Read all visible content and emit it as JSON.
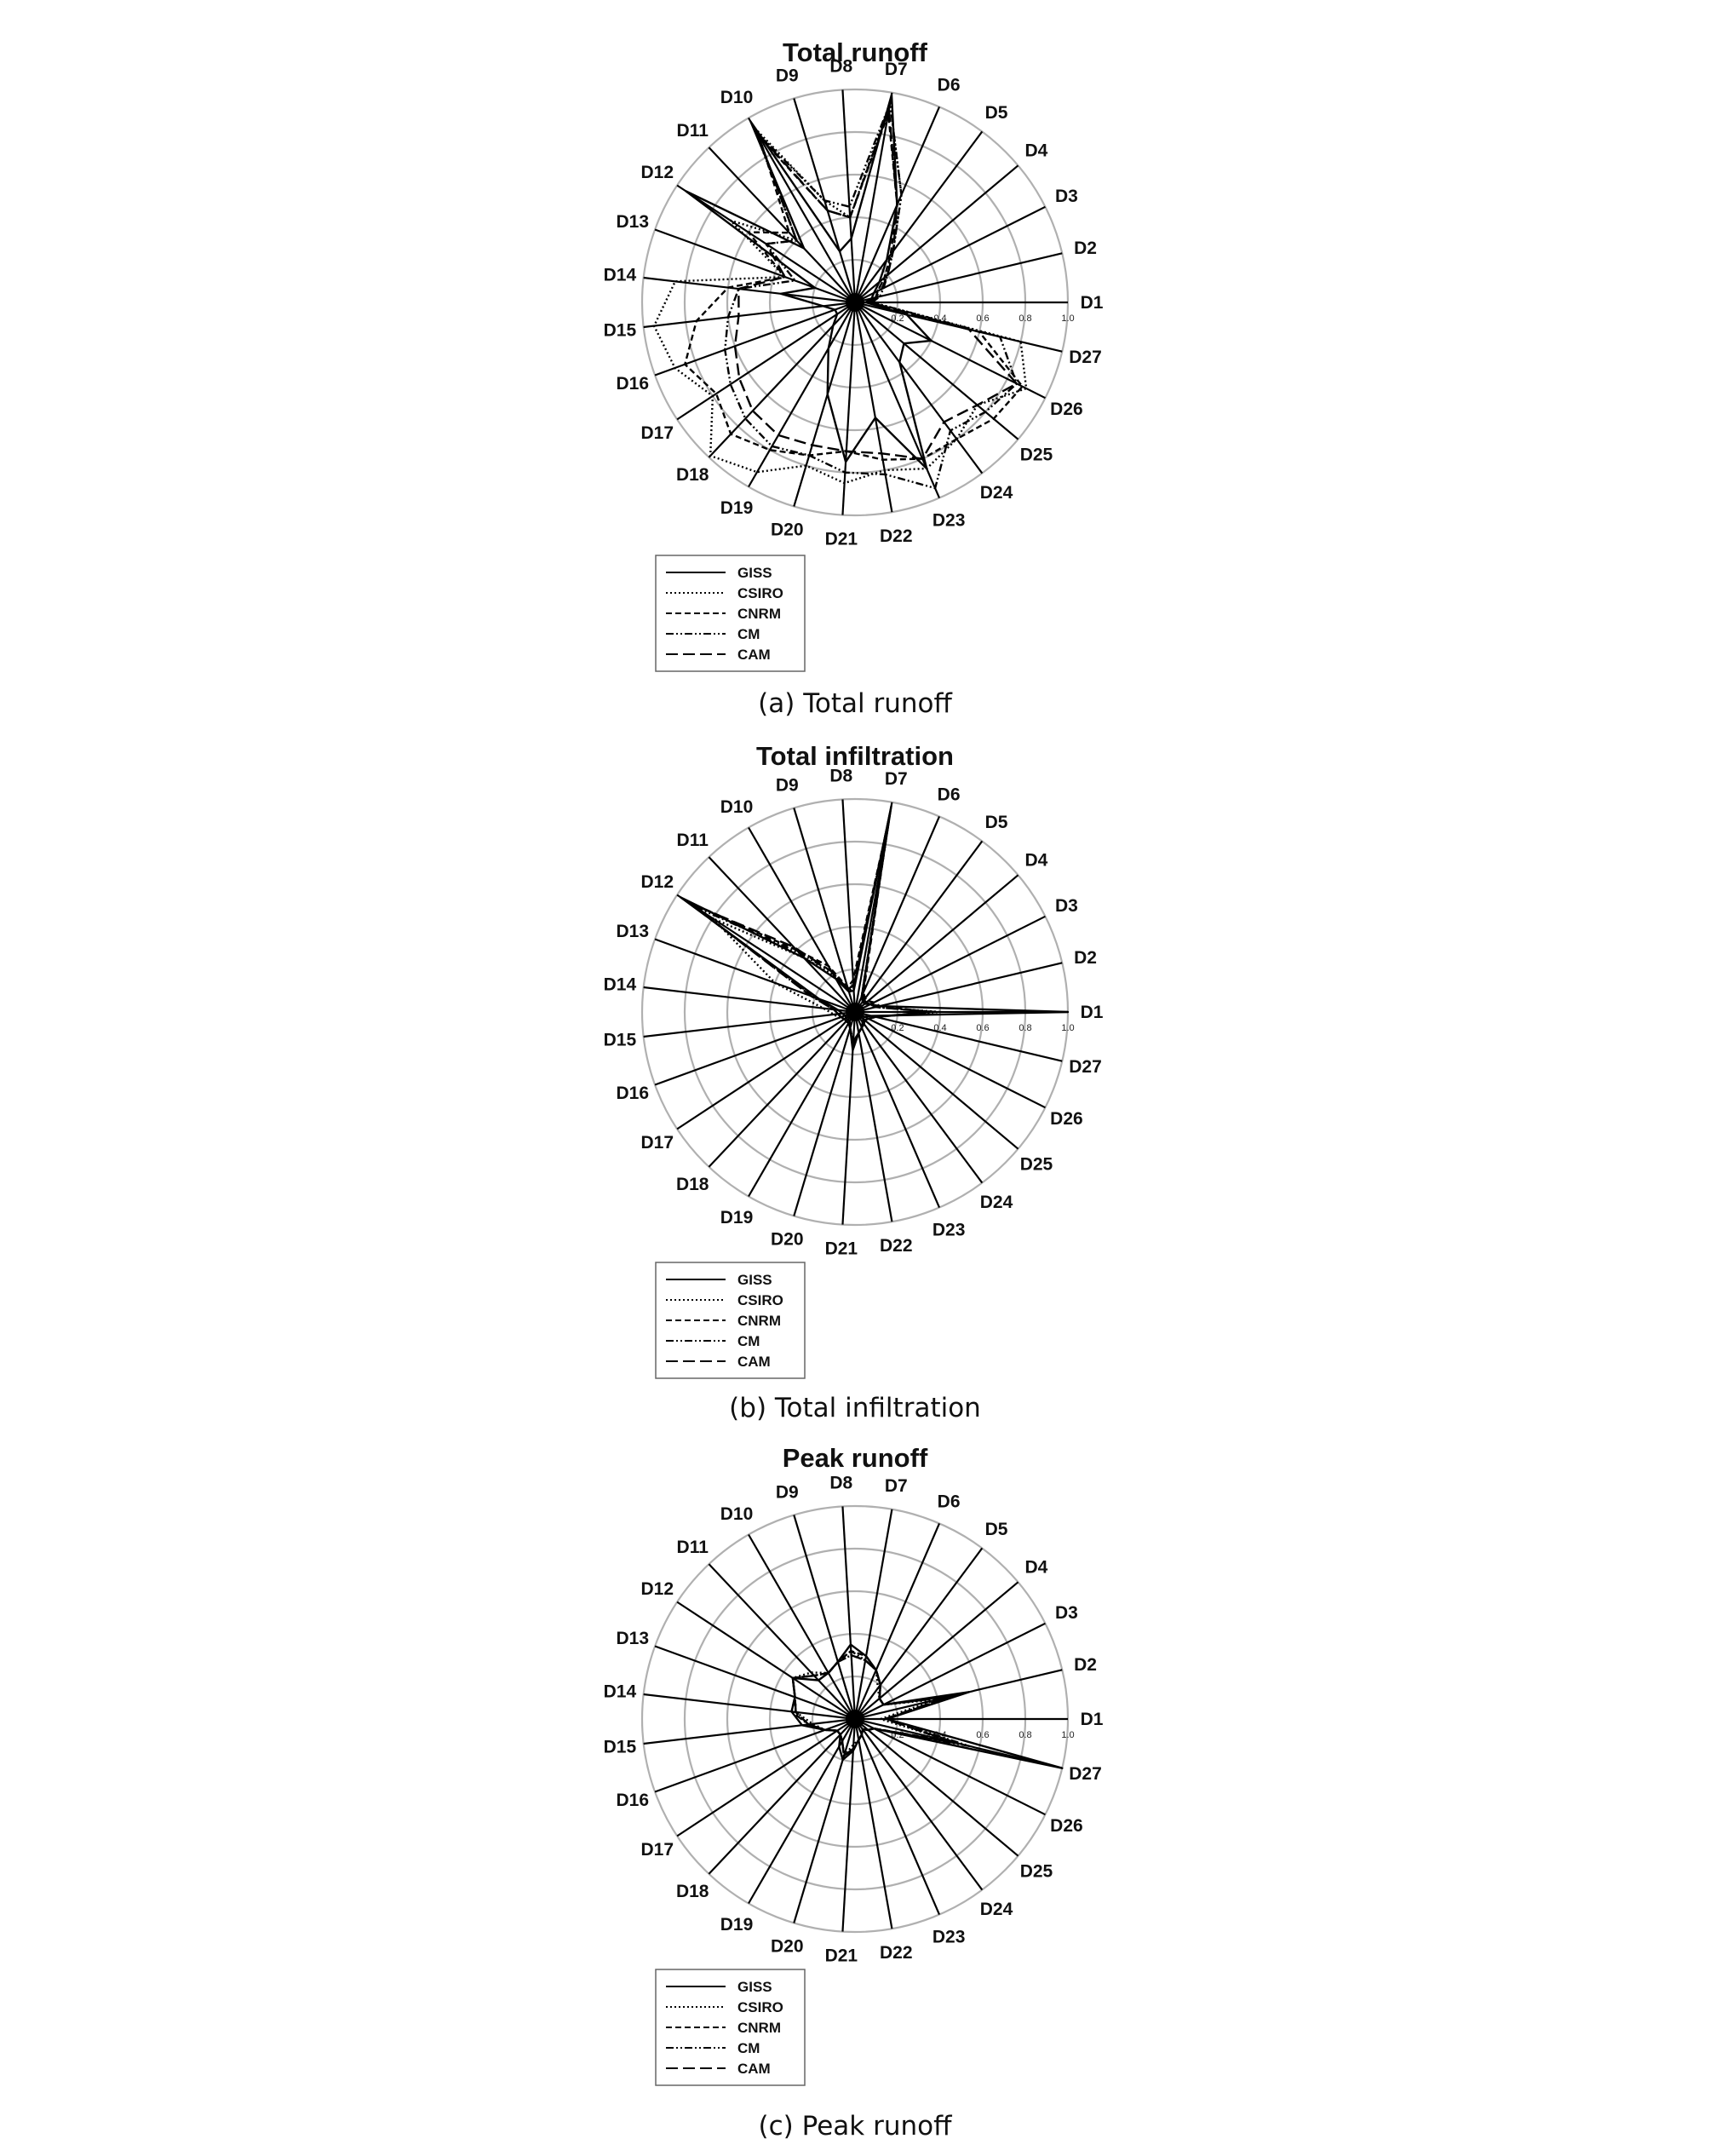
{
  "figure": {
    "spokes": [
      "D1",
      "D2",
      "D3",
      "D4",
      "D5",
      "D6",
      "D7",
      "D8",
      "D9",
      "D10",
      "D11",
      "D12",
      "D13",
      "D14",
      "D15",
      "D16",
      "D17",
      "D18",
      "D19",
      "D20",
      "D21",
      "D22",
      "D23",
      "D24",
      "D25",
      "D26",
      "D27"
    ],
    "radial_ticks": [
      "0.2",
      "0.4",
      "0.6",
      "0.8",
      "1.0"
    ],
    "legend": [
      "GISS",
      "CSIRO",
      "CNRM",
      "CM",
      "CAM"
    ],
    "series_styles": {
      "GISS": {
        "color": "#000000",
        "dash": "solid"
      },
      "CSIRO": {
        "color": "#000000",
        "dash": "dotted"
      },
      "CNRM": {
        "color": "#000000",
        "dash": "short-dash"
      },
      "CM": {
        "color": "#000000",
        "dash": "dash-dot-dot"
      },
      "CAM": {
        "color": "#000000",
        "dash": "long-dash"
      }
    },
    "grid_color": "#b0b0b0"
  },
  "chart_data": [
    {
      "type": "radar",
      "title": "Total runoff",
      "caption": "(a) Total runoff",
      "rlim": [
        0,
        1.0
      ],
      "grid": true,
      "legend_position": "bottom-left",
      "categories": [
        "D1",
        "D2",
        "D3",
        "D4",
        "D5",
        "D6",
        "D7",
        "D8",
        "D9",
        "D10",
        "D11",
        "D12",
        "D13",
        "D14",
        "D15",
        "D16",
        "D17",
        "D18",
        "D19",
        "D20",
        "D21",
        "D22",
        "D23",
        "D24",
        "D25",
        "D26",
        "D27"
      ],
      "series": [
        {
          "name": "GISS",
          "values": [
            0.05,
            0.08,
            0.1,
            0.15,
            0.25,
            0.5,
            0.99,
            0.3,
            0.25,
            0.98,
            0.35,
            0.95,
            0.2,
            0.35,
            0.15,
            0.1,
            0.1,
            0.15,
            0.25,
            0.45,
            0.75,
            0.55,
            0.85,
            0.35,
            0.3,
            0.4,
            0.25
          ]
        },
        {
          "name": "CSIRO",
          "values": [
            0.08,
            0.1,
            0.12,
            0.18,
            0.3,
            0.55,
            0.95,
            0.4,
            0.5,
            0.95,
            0.4,
            0.7,
            0.35,
            0.85,
            0.95,
            0.9,
            0.8,
            0.99,
            0.92,
            0.8,
            0.85,
            0.8,
            0.85,
            0.8,
            0.75,
            0.9,
            0.8
          ]
        },
        {
          "name": "CNRM",
          "values": [
            0.06,
            0.1,
            0.12,
            0.18,
            0.28,
            0.5,
            0.9,
            0.4,
            0.45,
            0.9,
            0.45,
            0.6,
            0.35,
            0.6,
            0.75,
            0.85,
            0.78,
            0.85,
            0.8,
            0.75,
            0.7,
            0.75,
            0.8,
            0.8,
            0.85,
            0.88,
            0.6
          ]
        },
        {
          "name": "CM",
          "values": [
            0.08,
            0.12,
            0.15,
            0.2,
            0.3,
            0.55,
            0.95,
            0.45,
            0.5,
            0.92,
            0.4,
            0.5,
            0.3,
            0.55,
            0.6,
            0.65,
            0.7,
            0.75,
            0.78,
            0.75,
            0.8,
            0.82,
            0.95,
            0.75,
            0.8,
            0.85,
            0.7
          ]
        },
        {
          "name": "CAM",
          "values": [
            0.07,
            0.1,
            0.14,
            0.2,
            0.3,
            0.5,
            0.92,
            0.4,
            0.45,
            0.92,
            0.4,
            0.5,
            0.35,
            0.55,
            0.55,
            0.6,
            0.65,
            0.7,
            0.72,
            0.7,
            0.7,
            0.72,
            0.8,
            0.7,
            0.75,
            0.85,
            0.55
          ]
        }
      ]
    },
    {
      "type": "radar",
      "title": "Total infiltration",
      "caption": "(b) Total infiltration",
      "rlim": [
        0,
        1.0
      ],
      "grid": true,
      "legend_position": "bottom-left",
      "categories": [
        "D1",
        "D2",
        "D3",
        "D4",
        "D5",
        "D6",
        "D7",
        "D8",
        "D9",
        "D10",
        "D11",
        "D12",
        "D13",
        "D14",
        "D15",
        "D16",
        "D17",
        "D18",
        "D19",
        "D20",
        "D21",
        "D22",
        "D23",
        "D24",
        "D25",
        "D26",
        "D27"
      ],
      "series": [
        {
          "name": "GISS",
          "values": [
            1.0,
            0.12,
            0.08,
            0.06,
            0.06,
            0.08,
            0.98,
            0.1,
            0.1,
            0.18,
            0.35,
            0.98,
            0.18,
            0.08,
            0.06,
            0.05,
            0.05,
            0.05,
            0.05,
            0.08,
            0.18,
            0.1,
            0.08,
            0.06,
            0.05,
            0.05,
            0.08
          ]
        },
        {
          "name": "CSIRO",
          "values": [
            0.4,
            0.1,
            0.08,
            0.07,
            0.07,
            0.08,
            0.9,
            0.12,
            0.12,
            0.2,
            0.35,
            0.8,
            0.4,
            0.15,
            0.1,
            0.08,
            0.06,
            0.06,
            0.06,
            0.08,
            0.15,
            0.1,
            0.08,
            0.06,
            0.06,
            0.07,
            0.1
          ]
        },
        {
          "name": "CNRM",
          "values": [
            0.35,
            0.12,
            0.1,
            0.08,
            0.08,
            0.1,
            0.92,
            0.15,
            0.12,
            0.25,
            0.4,
            0.95,
            0.2,
            0.1,
            0.08,
            0.07,
            0.06,
            0.06,
            0.06,
            0.08,
            0.15,
            0.1,
            0.08,
            0.07,
            0.06,
            0.07,
            0.1
          ]
        },
        {
          "name": "CM",
          "values": [
            0.38,
            0.1,
            0.08,
            0.07,
            0.07,
            0.08,
            0.95,
            0.12,
            0.1,
            0.22,
            0.38,
            0.9,
            0.22,
            0.1,
            0.08,
            0.07,
            0.06,
            0.06,
            0.06,
            0.08,
            0.14,
            0.1,
            0.08,
            0.07,
            0.06,
            0.07,
            0.1
          ]
        },
        {
          "name": "CAM",
          "values": [
            0.36,
            0.1,
            0.09,
            0.07,
            0.07,
            0.09,
            0.94,
            0.13,
            0.11,
            0.22,
            0.42,
            0.93,
            0.22,
            0.1,
            0.08,
            0.07,
            0.06,
            0.06,
            0.06,
            0.08,
            0.14,
            0.1,
            0.08,
            0.07,
            0.06,
            0.07,
            0.1
          ]
        }
      ]
    },
    {
      "type": "radar",
      "title": "Peak runoff",
      "caption": "(c) Peak runoff",
      "rlim": [
        0,
        1.0
      ],
      "grid": true,
      "legend_position": "bottom-left",
      "categories": [
        "D1",
        "D2",
        "D3",
        "D4",
        "D5",
        "D6",
        "D7",
        "D8",
        "D9",
        "D10",
        "D11",
        "D12",
        "D13",
        "D14",
        "D15",
        "D16",
        "D17",
        "D18",
        "D19",
        "D20",
        "D21",
        "D22",
        "D23",
        "D24",
        "D25",
        "D26",
        "D27"
      ],
      "series": [
        {
          "name": "GISS",
          "values": [
            0.15,
            0.55,
            0.15,
            0.15,
            0.2,
            0.25,
            0.3,
            0.35,
            0.28,
            0.25,
            0.25,
            0.35,
            0.3,
            0.3,
            0.25,
            0.15,
            0.1,
            0.1,
            0.15,
            0.2,
            0.15,
            0.1,
            0.08,
            0.06,
            0.08,
            0.1,
            1.0
          ]
        },
        {
          "name": "CSIRO",
          "values": [
            0.12,
            0.4,
            0.15,
            0.15,
            0.18,
            0.25,
            0.28,
            0.3,
            0.28,
            0.25,
            0.3,
            0.35,
            0.3,
            0.28,
            0.2,
            0.15,
            0.1,
            0.1,
            0.12,
            0.18,
            0.12,
            0.1,
            0.08,
            0.06,
            0.08,
            0.1,
            0.5
          ]
        },
        {
          "name": "CNRM",
          "values": [
            0.15,
            0.45,
            0.15,
            0.15,
            0.2,
            0.25,
            0.3,
            0.32,
            0.28,
            0.25,
            0.28,
            0.35,
            0.3,
            0.28,
            0.22,
            0.15,
            0.1,
            0.1,
            0.12,
            0.18,
            0.14,
            0.1,
            0.08,
            0.06,
            0.08,
            0.1,
            0.45
          ]
        },
        {
          "name": "CM",
          "values": [
            0.15,
            0.48,
            0.15,
            0.15,
            0.2,
            0.25,
            0.28,
            0.32,
            0.28,
            0.25,
            0.28,
            0.35,
            0.3,
            0.3,
            0.22,
            0.15,
            0.1,
            0.1,
            0.12,
            0.18,
            0.14,
            0.1,
            0.08,
            0.06,
            0.08,
            0.1,
            0.55
          ]
        },
        {
          "name": "CAM",
          "values": [
            0.14,
            0.45,
            0.15,
            0.15,
            0.2,
            0.25,
            0.28,
            0.3,
            0.28,
            0.25,
            0.28,
            0.35,
            0.3,
            0.28,
            0.22,
            0.15,
            0.1,
            0.1,
            0.12,
            0.18,
            0.14,
            0.1,
            0.08,
            0.06,
            0.08,
            0.1,
            0.5
          ]
        }
      ]
    }
  ]
}
